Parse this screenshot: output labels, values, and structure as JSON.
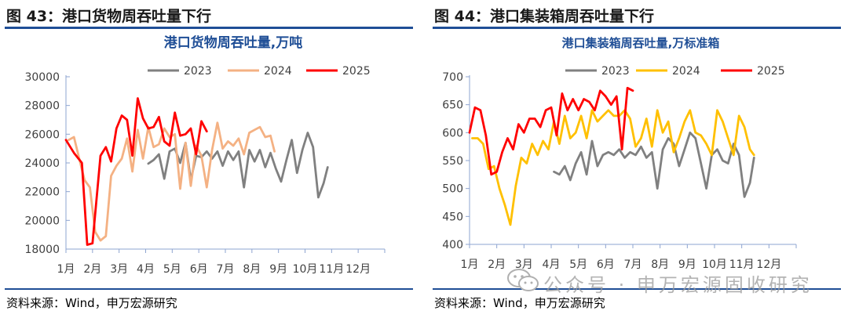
{
  "panels": [
    {
      "title": "图 43：港口货物周吞吐量下行"
    },
    {
      "title": "图 44：港口集装箱周吞吐量下行"
    }
  ],
  "source_left": "资料来源：Wind，申万宏源研究",
  "source_right": "资料来源：Wind，申万宏源研究",
  "watermark": "公众号 · 申万宏源固收研究",
  "colors": {
    "s2023": "#808080",
    "s2024": "#f4b183",
    "s2025": "#ff0000",
    "s2024b": "#ffc000",
    "rule": "#1f4e96",
    "title": "#1f4e96"
  },
  "chart_data": [
    {
      "type": "line",
      "title": "港口货物周吞吐量,万吨",
      "categories": [
        "1月",
        "2月",
        "3月",
        "4月",
        "5月",
        "6月",
        "7月",
        "8月",
        "9月",
        "10月",
        "11月",
        "12月"
      ],
      "ylim": [
        18000,
        30000
      ],
      "yticks": [
        "18000",
        "20000",
        "22000",
        "24000",
        "26000",
        "28000",
        "30000"
      ],
      "yticks_values": [
        18000,
        20000,
        22000,
        24000,
        26000,
        28000,
        30000
      ],
      "grid": false,
      "legend": "top",
      "series": [
        {
          "name": "2023",
          "color_key": "s2023",
          "points": [
            [
              3.1,
              23950
            ],
            [
              3.3,
              24200
            ],
            [
              3.5,
              24600
            ],
            [
              3.7,
              22900
            ],
            [
              3.9,
              24800
            ],
            [
              4.1,
              25000
            ],
            [
              4.3,
              24000
            ],
            [
              4.5,
              25400
            ],
            [
              4.7,
              22800
            ],
            [
              4.9,
              24500
            ],
            [
              5.1,
              24400
            ],
            [
              5.3,
              24800
            ],
            [
              5.5,
              24300
            ],
            [
              5.7,
              24800
            ],
            [
              5.9,
              23800
            ],
            [
              6.1,
              24800
            ],
            [
              6.3,
              24200
            ],
            [
              6.5,
              24800
            ],
            [
              6.7,
              22300
            ],
            [
              6.9,
              24900
            ],
            [
              7.1,
              24100
            ],
            [
              7.3,
              24900
            ],
            [
              7.5,
              23700
            ],
            [
              7.7,
              24700
            ],
            [
              7.9,
              23600
            ],
            [
              8.1,
              22700
            ],
            [
              8.3,
              24200
            ],
            [
              8.5,
              25600
            ],
            [
              8.7,
              23300
            ],
            [
              8.9,
              24900
            ],
            [
              9.1,
              26100
            ],
            [
              9.3,
              25100
            ],
            [
              9.5,
              21600
            ],
            [
              9.7,
              22600
            ],
            [
              9.85,
              23700
            ]
          ]
        },
        {
          "name": "2024",
          "color_key": "s2024",
          "points": [
            [
              0.1,
              25600
            ],
            [
              0.3,
              25800
            ],
            [
              0.5,
              24300
            ],
            [
              0.7,
              22800
            ],
            [
              0.9,
              22300
            ],
            [
              1.1,
              19200
            ],
            [
              1.3,
              18600
            ],
            [
              1.5,
              18900
            ],
            [
              1.7,
              23100
            ],
            [
              1.9,
              23800
            ],
            [
              2.1,
              24300
            ],
            [
              2.3,
              25700
            ],
            [
              2.5,
              23400
            ],
            [
              2.7,
              26300
            ],
            [
              2.9,
              24300
            ],
            [
              3.1,
              26500
            ],
            [
              3.3,
              25100
            ],
            [
              3.5,
              25300
            ],
            [
              3.7,
              26400
            ],
            [
              3.9,
              25800
            ],
            [
              4.1,
              26000
            ],
            [
              4.3,
              22200
            ],
            [
              4.5,
              25400
            ],
            [
              4.7,
              22400
            ],
            [
              4.9,
              25200
            ],
            [
              5.1,
              24500
            ],
            [
              5.3,
              22300
            ],
            [
              5.5,
              24900
            ],
            [
              5.7,
              26800
            ],
            [
              5.9,
              25000
            ],
            [
              6.1,
              25500
            ],
            [
              6.3,
              25200
            ],
            [
              6.5,
              25700
            ],
            [
              6.7,
              24600
            ],
            [
              6.9,
              26100
            ],
            [
              7.1,
              26300
            ],
            [
              7.3,
              26500
            ],
            [
              7.5,
              25800
            ],
            [
              7.7,
              25900
            ],
            [
              7.85,
              24800
            ]
          ]
        },
        {
          "name": "2025",
          "color_key": "s2025",
          "points": [
            [
              0.0,
              25600
            ],
            [
              0.3,
              24700
            ],
            [
              0.6,
              24000
            ],
            [
              0.8,
              18300
            ],
            [
              1.0,
              18400
            ],
            [
              1.3,
              24500
            ],
            [
              1.5,
              25100
            ],
            [
              1.7,
              24100
            ],
            [
              1.9,
              26400
            ],
            [
              2.1,
              27300
            ],
            [
              2.3,
              27000
            ],
            [
              2.5,
              24500
            ],
            [
              2.7,
              28500
            ],
            [
              2.9,
              27100
            ],
            [
              3.1,
              26400
            ],
            [
              3.3,
              26500
            ],
            [
              3.5,
              27200
            ],
            [
              3.7,
              25500
            ],
            [
              3.9,
              25200
            ],
            [
              4.1,
              27500
            ],
            [
              4.3,
              25900
            ],
            [
              4.5,
              26000
            ],
            [
              4.7,
              26400
            ],
            [
              4.9,
              24600
            ],
            [
              5.1,
              26900
            ],
            [
              5.3,
              26200
            ]
          ]
        }
      ]
    },
    {
      "type": "line",
      "title": "港口集装箱周吞吐量,万标准箱",
      "categories": [
        "1月",
        "2月",
        "3月",
        "4月",
        "5月",
        "6月",
        "7月",
        "8月",
        "9月",
        "10月",
        "11月",
        "12月"
      ],
      "ylim": [
        400,
        700
      ],
      "yticks": [
        "400",
        "450",
        "500",
        "550",
        "600",
        "650",
        "700"
      ],
      "yticks_values": [
        400,
        450,
        500,
        550,
        600,
        650,
        700
      ],
      "grid": false,
      "legend": "top",
      "series": [
        {
          "name": "2023",
          "color_key": "s2023",
          "points": [
            [
              3.1,
              530
            ],
            [
              3.3,
              525
            ],
            [
              3.5,
              540
            ],
            [
              3.7,
              515
            ],
            [
              3.9,
              545
            ],
            [
              4.1,
              565
            ],
            [
              4.3,
              525
            ],
            [
              4.5,
              585
            ],
            [
              4.7,
              540
            ],
            [
              4.9,
              560
            ],
            [
              5.1,
              565
            ],
            [
              5.3,
              560
            ],
            [
              5.5,
              570
            ],
            [
              5.7,
              555
            ],
            [
              5.9,
              565
            ],
            [
              6.1,
              560
            ],
            [
              6.3,
              575
            ],
            [
              6.5,
              555
            ],
            [
              6.7,
              565
            ],
            [
              6.9,
              500
            ],
            [
              7.1,
              570
            ],
            [
              7.3,
              590
            ],
            [
              7.5,
              580
            ],
            [
              7.7,
              540
            ],
            [
              7.9,
              570
            ],
            [
              8.1,
              600
            ],
            [
              8.3,
              590
            ],
            [
              8.5,
              545
            ],
            [
              8.7,
              500
            ],
            [
              8.9,
              560
            ],
            [
              9.1,
              570
            ],
            [
              9.3,
              550
            ],
            [
              9.5,
              545
            ],
            [
              9.7,
              580
            ],
            [
              9.9,
              560
            ],
            [
              10.1,
              485
            ],
            [
              10.3,
              510
            ],
            [
              10.45,
              555
            ]
          ]
        },
        {
          "name": "2024",
          "color_key": "s2024b",
          "points": [
            [
              0.1,
              590
            ],
            [
              0.3,
              590
            ],
            [
              0.5,
              580
            ],
            [
              0.7,
              535
            ],
            [
              0.9,
              540
            ],
            [
              1.1,
              500
            ],
            [
              1.3,
              470
            ],
            [
              1.5,
              435
            ],
            [
              1.7,
              505
            ],
            [
              1.9,
              555
            ],
            [
              2.1,
              545
            ],
            [
              2.3,
              580
            ],
            [
              2.5,
              560
            ],
            [
              2.7,
              585
            ],
            [
              2.9,
              570
            ],
            [
              3.1,
              620
            ],
            [
              3.3,
              580
            ],
            [
              3.5,
              630
            ],
            [
              3.7,
              590
            ],
            [
              3.9,
              600
            ],
            [
              4.1,
              630
            ],
            [
              4.3,
              590
            ],
            [
              4.5,
              640
            ],
            [
              4.7,
              620
            ],
            [
              4.9,
              630
            ],
            [
              5.1,
              640
            ],
            [
              5.3,
              630
            ],
            [
              5.5,
              630
            ],
            [
              5.7,
              640
            ],
            [
              5.9,
              625
            ],
            [
              6.1,
              575
            ],
            [
              6.3,
              590
            ],
            [
              6.5,
              625
            ],
            [
              6.7,
              575
            ],
            [
              6.9,
              640
            ],
            [
              7.1,
              600
            ],
            [
              7.3,
              620
            ],
            [
              7.5,
              565
            ],
            [
              7.7,
              590
            ],
            [
              7.9,
              620
            ],
            [
              8.1,
              640
            ],
            [
              8.3,
              600
            ],
            [
              8.5,
              595
            ],
            [
              8.7,
              580
            ],
            [
              8.9,
              560
            ],
            [
              9.1,
              640
            ],
            [
              9.3,
              620
            ],
            [
              9.5,
              590
            ],
            [
              9.7,
              560
            ],
            [
              9.9,
              630
            ],
            [
              10.1,
              610
            ],
            [
              10.3,
              570
            ],
            [
              10.45,
              560
            ]
          ]
        },
        {
          "name": "2025",
          "color_key": "s2025",
          "points": [
            [
              0.0,
              600
            ],
            [
              0.2,
              645
            ],
            [
              0.4,
              640
            ],
            [
              0.6,
              595
            ],
            [
              0.8,
              525
            ],
            [
              1.0,
              530
            ],
            [
              1.2,
              565
            ],
            [
              1.4,
              590
            ],
            [
              1.6,
              570
            ],
            [
              1.8,
              615
            ],
            [
              2.0,
              600
            ],
            [
              2.2,
              625
            ],
            [
              2.4,
              625
            ],
            [
              2.6,
              610
            ],
            [
              2.8,
              640
            ],
            [
              3.0,
              645
            ],
            [
              3.2,
              595
            ],
            [
              3.4,
              670
            ],
            [
              3.6,
              640
            ],
            [
              3.8,
              660
            ],
            [
              4.0,
              640
            ],
            [
              4.2,
              660
            ],
            [
              4.4,
              655
            ],
            [
              4.6,
              640
            ],
            [
              4.8,
              675
            ],
            [
              5.0,
              665
            ],
            [
              5.2,
              650
            ],
            [
              5.4,
              665
            ],
            [
              5.6,
              570
            ],
            [
              5.8,
              680
            ],
            [
              6.0,
              675
            ]
          ]
        }
      ]
    }
  ]
}
